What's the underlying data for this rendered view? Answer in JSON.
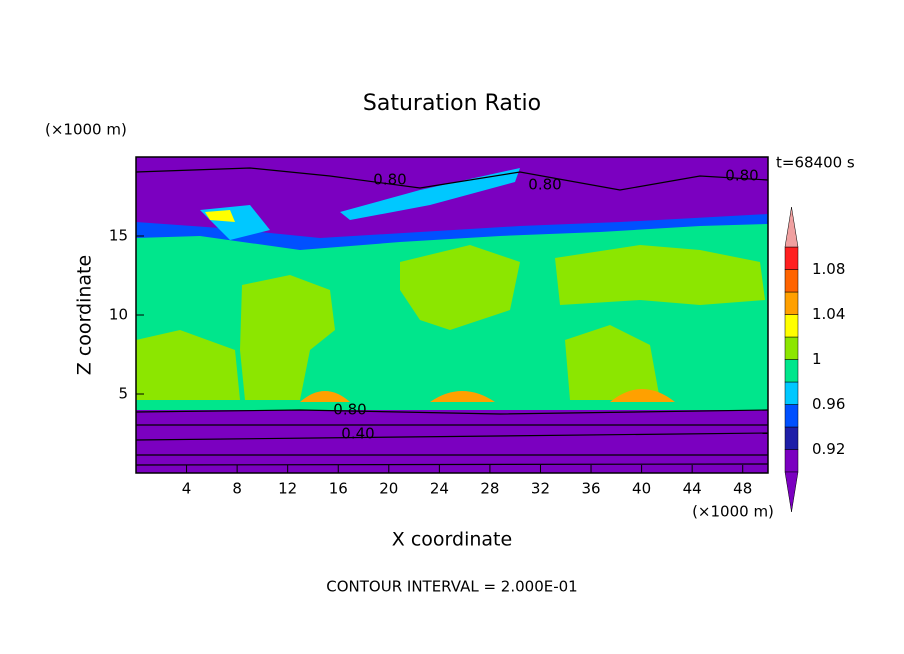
{
  "chart_data": {
    "type": "filled-contour",
    "title": "Saturation Ratio",
    "xlabel": "X coordinate",
    "ylabel": "Z coordinate",
    "x_unit": "(×1000 m)",
    "y_unit": "(×1000 m)",
    "annotation": "t=68400 s",
    "footer": "CONTOUR INTERVAL = 2.000E-01",
    "xlim": [
      0,
      50
    ],
    "ylim": [
      0,
      20
    ],
    "xticks": [
      4,
      8,
      12,
      16,
      20,
      24,
      28,
      32,
      36,
      40,
      44,
      48
    ],
    "yticks": [
      5,
      10,
      15
    ],
    "contour_labels": [
      "0.80",
      "0.80",
      "0.80",
      "0.80",
      "0.40"
    ],
    "colorbar": {
      "levels": [
        0.9,
        0.92,
        0.94,
        0.96,
        0.98,
        1,
        1.02,
        1.04,
        1.06,
        1.08,
        1.1
      ],
      "colors": [
        "#7b00c0",
        "#1e1ea8",
        "#0050ff",
        "#00c8ff",
        "#00e68c",
        "#8ce600",
        "#ffff00",
        "#ffa000",
        "#ff6400",
        "#ff2020"
      ],
      "under_color": "#7b00c0",
      "over_color": "#f0a0a0",
      "ticks": [
        0.92,
        0.96,
        1,
        1.04,
        1.08
      ]
    }
  }
}
